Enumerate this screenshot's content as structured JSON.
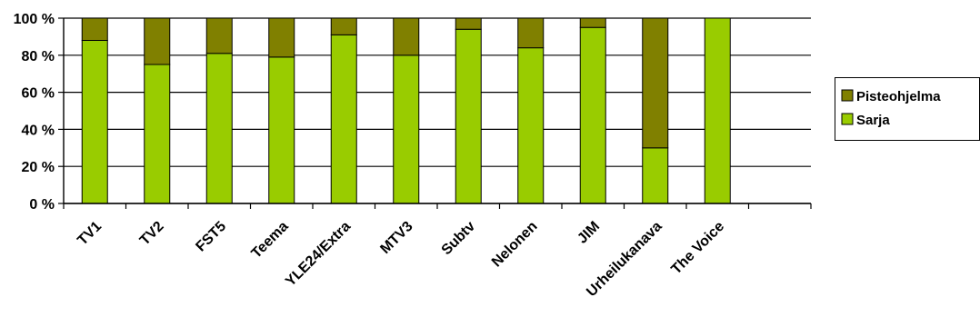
{
  "chart_data": {
    "type": "bar",
    "stacked": true,
    "percent": true,
    "title": "",
    "xlabel": "",
    "ylabel": "",
    "ylim": [
      0,
      100
    ],
    "yticks": [
      "0 %",
      "20 %",
      "40 %",
      "60 %",
      "80 %",
      "100 %"
    ],
    "grid": true,
    "legend_position": "right",
    "categories": [
      "TV1",
      "TV2",
      "FST5",
      "Teema",
      "YLE24/Extra",
      "MTV3",
      "Subtv",
      "Nelonen",
      "JIM",
      "Urheilukanava",
      "The Voice"
    ],
    "series": [
      {
        "name": "Sarja",
        "color": "#99CC00",
        "values": [
          88,
          75,
          81,
          79,
          91,
          80,
          94,
          84,
          95,
          30,
          100
        ]
      },
      {
        "name": "Pisteohjelma",
        "color": "#808000",
        "values": [
          12,
          25,
          19,
          21,
          9,
          20,
          6,
          16,
          5,
          70,
          0
        ]
      }
    ],
    "legend": [
      "Pisteohjelma",
      "Sarja"
    ],
    "empty_slots": 1
  }
}
